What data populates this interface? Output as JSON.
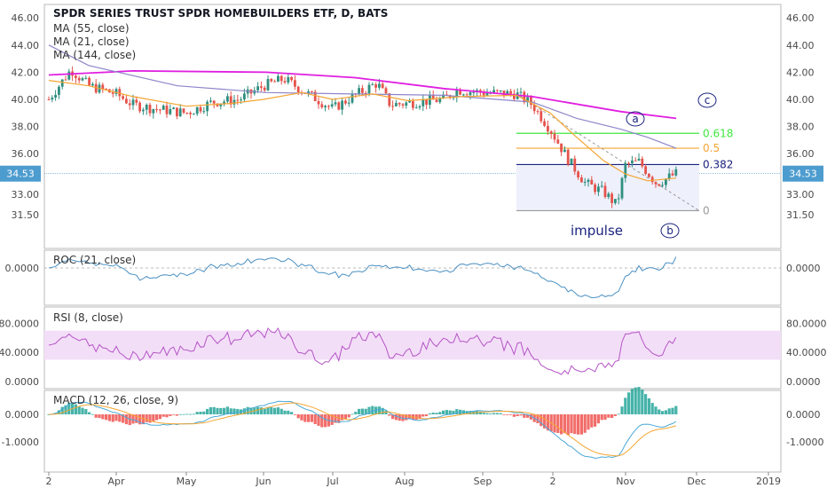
{
  "header": {
    "title": "SPDR SERIES TRUST SPDR HOMEBUILDERS ETF, D, BATS",
    "studies": [
      "MA (55, close)",
      "MA (21, close)",
      "MA (144, close)"
    ]
  },
  "colors": {
    "up": "#2f8f7f",
    "down": "#e5534b",
    "ma55": "#8e86c9",
    "ma21": "#f4a531",
    "ma144": "#e01ee0",
    "fib0618": "#3fe83f",
    "fib05": "#f4a531",
    "fib0382": "#1a237e",
    "wave": "#1a237e",
    "roc": "#4a90c2",
    "rsi": "#b455c5",
    "rsi_band": "#f3def8",
    "macd_line": "#4aa9d8",
    "signal_line": "#f4a531",
    "hist_pos": "#26a69a",
    "hist_neg": "#ef5350",
    "price_tag": "#4d9ccf"
  },
  "price_axis": {
    "ticks": [
      "46.00",
      "44.00",
      "42.00",
      "40.00",
      "38.00",
      "36.00",
      "34.53",
      "33.00",
      "31.50"
    ],
    "last_price": "34.53"
  },
  "x_axis": {
    "labels": [
      "2",
      "Apr",
      "May",
      "Jun",
      "Jul",
      "Aug",
      "Sep",
      "2",
      "Nov",
      "Dec",
      "2019"
    ]
  },
  "fib": {
    "levels": [
      {
        "label": "0.618",
        "value": 37.5
      },
      {
        "label": "0.5",
        "value": 36.4
      },
      {
        "label": "0.382",
        "value": 35.2
      },
      {
        "label": "0",
        "value": 31.8
      }
    ]
  },
  "waves": {
    "a": "a",
    "b": "b",
    "c": "c",
    "impulse": "impulse"
  },
  "roc": {
    "title": "ROC (21, close)",
    "ticks": [
      "0.0000"
    ]
  },
  "rsi": {
    "title": "RSI (8, close)",
    "ticks": [
      "80.0000",
      "40.0000",
      "0.0000"
    ]
  },
  "macd": {
    "title": "MACD (12, 26, close, 9)",
    "ticks": [
      "0.0000",
      "-1.0000"
    ]
  },
  "chart_data": {
    "type": "candlestick",
    "title": "SPDR SERIES TRUST SPDR HOMEBUILDERS ETF, D, BATS",
    "x_tick_labels": [
      "2",
      "Apr",
      "May",
      "Jun",
      "Jul",
      "Aug",
      "Sep",
      "2",
      "Nov",
      "Dec",
      "2019"
    ],
    "price_range": [
      31.0,
      46.5
    ],
    "close_series_approx": [
      {
        "label": "2",
        "close": 40.2
      },
      {
        "label": "mid-Mar",
        "close": 42.2
      },
      {
        "label": "Apr",
        "close": 41.4
      },
      {
        "label": "mid-Apr",
        "close": 39.7
      },
      {
        "label": "May",
        "close": 39.2
      },
      {
        "label": "mid-May",
        "close": 39.9
      },
      {
        "label": "Jun",
        "close": 40.9
      },
      {
        "label": "mid-Jun",
        "close": 40.4
      },
      {
        "label": "Jul",
        "close": 39.4
      },
      {
        "label": "mid-Jul",
        "close": 40.9
      },
      {
        "label": "Aug",
        "close": 39.5
      },
      {
        "label": "mid-Aug",
        "close": 40.4
      },
      {
        "label": "Sep",
        "close": 40.5
      },
      {
        "label": "mid-Sep",
        "close": 39.9
      },
      {
        "label": "2",
        "close": 36.5
      },
      {
        "label": "mid-Oct",
        "close": 33.5
      },
      {
        "label": "late-Oct",
        "close": 32.4
      },
      {
        "label": "Nov",
        "close": 35.3
      },
      {
        "label": "mid-Nov",
        "close": 34.0
      },
      {
        "label": "late-Nov",
        "close": 34.53
      }
    ],
    "moving_averages": [
      "MA (55, close)",
      "MA (21, close)",
      "MA (144, close)"
    ],
    "rsi_band": [
      30,
      70
    ],
    "roc_zero": 0.0,
    "macd_range": [
      -1.5,
      0.5
    ]
  }
}
